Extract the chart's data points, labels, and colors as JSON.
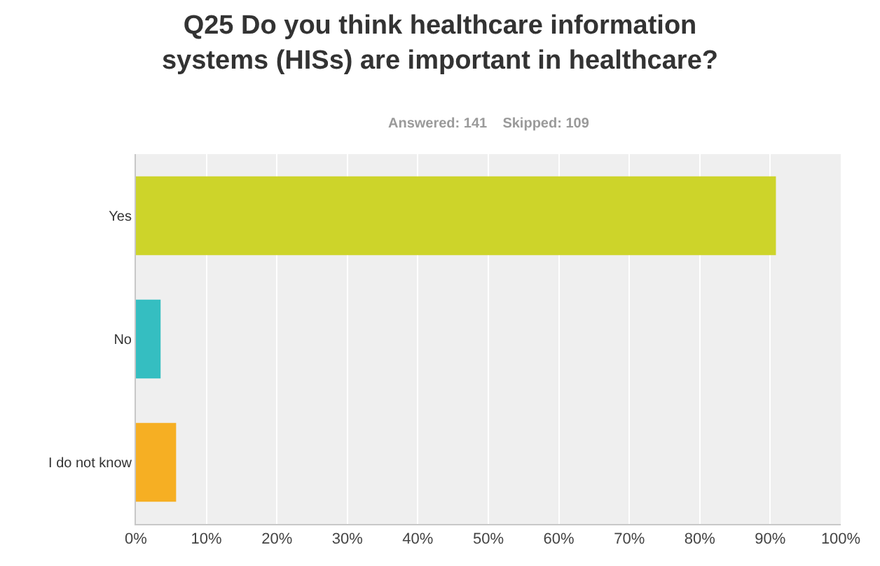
{
  "chart_data": {
    "type": "bar",
    "orientation": "horizontal",
    "title": "Q25 Do you think healthcare information systems (HISs) are important in healthcare?",
    "subtitle": "Answered: 141    Skipped: 109",
    "categories": [
      "Yes",
      "No",
      "I do not know"
    ],
    "values": [
      90.8,
      3.5,
      5.7
    ],
    "colors": [
      "#cdd42a",
      "#35bec1",
      "#f6af23"
    ],
    "xlim": [
      0,
      100
    ],
    "xticks": [
      {
        "value": 0,
        "label": "0%"
      },
      {
        "value": 10,
        "label": "10%"
      },
      {
        "value": 20,
        "label": "20%"
      },
      {
        "value": 30,
        "label": "30%"
      },
      {
        "value": 40,
        "label": "40%"
      },
      {
        "value": 50,
        "label": "50%"
      },
      {
        "value": 60,
        "label": "60%"
      },
      {
        "value": 70,
        "label": "70%"
      },
      {
        "value": 80,
        "label": "80%"
      },
      {
        "value": 90,
        "label": "90%"
      },
      {
        "value": 100,
        "label": "100%"
      }
    ],
    "grid": "x"
  }
}
